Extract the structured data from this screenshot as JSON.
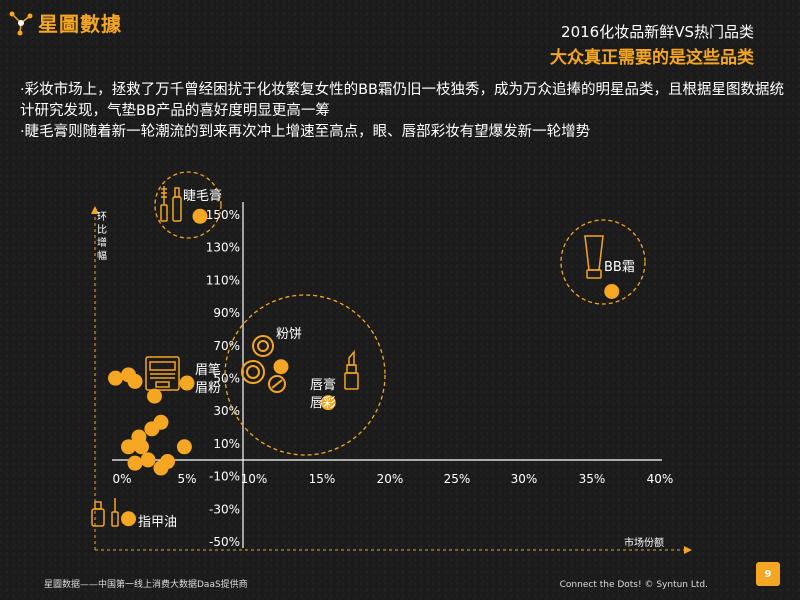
{
  "header": {
    "logo_text": "星圖數據",
    "title_line1": "2016化妆品新鲜VS热门品类",
    "title_line2": "大众真正需要的是这些品类"
  },
  "body": {
    "paragraphs": [
      "·彩妆市场上，拯救了万千曾经困扰于化妆繁复女性的BB霜仍旧一枝独秀，成为万众追捧的明星品类，且根据星图数据统计研究发现，气垫BB产品的喜好度明显更高一筹",
      "·睫毛膏则随着新一轮潮流的到来再次冲上增速至高点，眼、唇部彩妆有望爆发新一轮增势"
    ]
  },
  "footer": {
    "left": "星圖数据——中国第一线上消费大数据DaaS提供商",
    "right": "Connect the Dots! © Syntun Ltd.",
    "page": "9"
  },
  "colors": {
    "accent": "#f5a623",
    "background": "#1b1b1b",
    "text": "#ffffff"
  },
  "chart_data": {
    "type": "scatter",
    "xlabel": "市场份额",
    "ylabel": "环比增幅",
    "x_ticks": [
      "0%",
      "5%",
      "10%",
      "15%",
      "20%",
      "25%",
      "30%",
      "35%",
      "40%"
    ],
    "y_ticks": [
      "150%",
      "130%",
      "110%",
      "90%",
      "70%",
      "50%",
      "30%",
      "10%",
      "-10%",
      "-30%",
      "-50%"
    ],
    "xlim": [
      0,
      40
    ],
    "ylim": [
      -50,
      150
    ],
    "labeled_points": [
      {
        "name": "睫毛膏",
        "x": 6,
        "y": 148
      },
      {
        "name": "BB霜",
        "x": 36.5,
        "y": 102
      },
      {
        "name": "粉饼",
        "x": 12,
        "y": 56
      },
      {
        "name": "唇膏 唇彩",
        "x": 15.5,
        "y": 34
      },
      {
        "name": "眉笔 眉粉",
        "x": 5,
        "y": 46
      },
      {
        "name": "指甲油",
        "x": 0.5,
        "y": -37
      }
    ],
    "other_points": [
      {
        "x": -0.5,
        "y": 49
      },
      {
        "x": 0.5,
        "y": 51
      },
      {
        "x": 1,
        "y": 47
      },
      {
        "x": 2.5,
        "y": 38
      },
      {
        "x": 2.3,
        "y": 18
      },
      {
        "x": 3,
        "y": 22
      },
      {
        "x": 1.3,
        "y": 13
      },
      {
        "x": 0.5,
        "y": 7
      },
      {
        "x": 1.5,
        "y": 7
      },
      {
        "x": 4.8,
        "y": 7
      },
      {
        "x": 2,
        "y": -1
      },
      {
        "x": 3.5,
        "y": -2
      },
      {
        "x": 1,
        "y": -3
      },
      {
        "x": 3,
        "y": -6
      }
    ]
  }
}
